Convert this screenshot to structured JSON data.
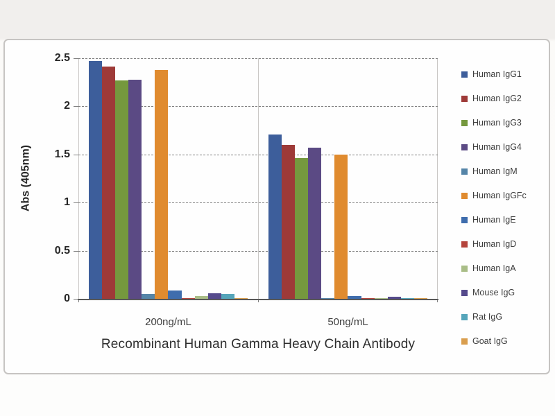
{
  "chart_data": {
    "type": "bar",
    "title": "Recombinant Human Gamma Heavy Chain Antibody",
    "ylabel": "Abs (405nm)",
    "categories": [
      "200ng/mL",
      "50ng/mL"
    ],
    "ylim": [
      0,
      2.5
    ],
    "y_ticks": [
      0,
      0.5,
      1,
      1.5,
      2,
      2.5
    ],
    "y_tick_labels": [
      "0",
      "0.5",
      "1",
      "1.5",
      "2",
      "2.5"
    ],
    "grid": "horizontal dashed gridlines on",
    "legend_position": "right",
    "series": [
      {
        "name": "Human IgG1",
        "color": "#3d5e9b",
        "values": [
          2.47,
          1.71
        ]
      },
      {
        "name": "Human IgG2",
        "color": "#9e3a38",
        "values": [
          2.41,
          1.6
        ]
      },
      {
        "name": "Human IgG3",
        "color": "#75983e",
        "values": [
          2.27,
          1.46
        ]
      },
      {
        "name": "Human IgG4",
        "color": "#5b4a84",
        "values": [
          2.28,
          1.57
        ]
      },
      {
        "name": "Human IgM",
        "color": "#5585a8",
        "values": [
          0.05,
          0.01
        ]
      },
      {
        "name": "Human IgGFc",
        "color": "#e08b2f",
        "values": [
          2.38,
          1.5
        ]
      },
      {
        "name": "Human IgE",
        "color": "#3f6dad",
        "values": [
          0.09,
          0.03
        ]
      },
      {
        "name": "Human IgD",
        "color": "#b5443c",
        "values": [
          0.01,
          0.01
        ]
      },
      {
        "name": "Human IgA",
        "color": "#a9bd87",
        "values": [
          0.03,
          0.01
        ]
      },
      {
        "name": "Mouse IgG",
        "color": "#554a8c",
        "values": [
          0.06,
          0.02
        ]
      },
      {
        "name": "Rat IgG",
        "color": "#55a5ba",
        "values": [
          0.05,
          0.01
        ]
      },
      {
        "name": "Goat IgG",
        "color": "#d99e4e",
        "values": [
          0.01,
          0.01
        ]
      }
    ]
  },
  "colors": {
    "page_background": "#f1efed",
    "panel_background": "#fefefe",
    "panel_border": "#c6c4c2",
    "gridline": "#7f7f7f",
    "axis_line": "#595959",
    "text": "#262626"
  }
}
